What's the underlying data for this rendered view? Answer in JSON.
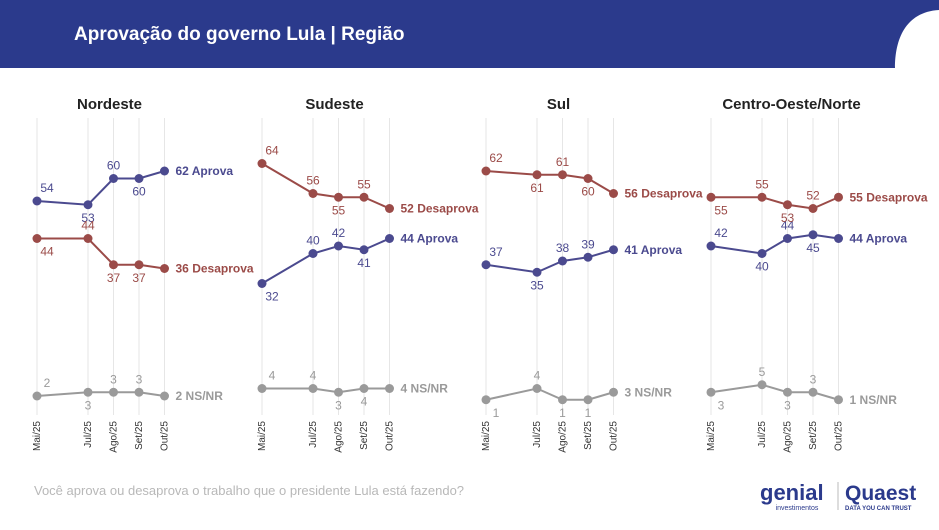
{
  "title": "Aprovação do governo Lula | Região",
  "question": "Você aprova ou desaprova o trabalho que o presidente Lula está fazendo?",
  "logos": {
    "genial": "genial",
    "genial_sub": "investimentos",
    "quaest": "Quaest",
    "quaest_sub": "DATA YOU CAN TRUST"
  },
  "chart_data": [
    {
      "type": "line",
      "title": "Nordeste",
      "x": [
        "Mai/25",
        "Jul/25",
        "Ago/25",
        "Set/25",
        "Out/25"
      ],
      "series": [
        {
          "name": "Aprova",
          "color": "#4b4a8f",
          "values": [
            54,
            53,
            60,
            60,
            62
          ]
        },
        {
          "name": "Desaprova",
          "color": "#9b4b48",
          "values": [
            44,
            44,
            37,
            37,
            36
          ]
        },
        {
          "name": "NS/NR",
          "color": "#9a9a9a",
          "values": [
            2,
            3,
            3,
            3,
            2
          ]
        }
      ]
    },
    {
      "type": "line",
      "title": "Sudeste",
      "x": [
        "Mai/25",
        "Jul/25",
        "Ago/25",
        "Set/25",
        "Out/25"
      ],
      "series": [
        {
          "name": "Aprova",
          "color": "#4b4a8f",
          "values": [
            32,
            40,
            42,
            41,
            44
          ]
        },
        {
          "name": "Desaprova",
          "color": "#9b4b48",
          "values": [
            64,
            56,
            55,
            55,
            52
          ]
        },
        {
          "name": "NS/NR",
          "color": "#9a9a9a",
          "values": [
            4,
            4,
            3,
            4,
            4
          ]
        }
      ]
    },
    {
      "type": "line",
      "title": "Sul",
      "x": [
        "Mai/25",
        "Jul/25",
        "Ago/25",
        "Set/25",
        "Out/25"
      ],
      "series": [
        {
          "name": "Aprova",
          "color": "#4b4a8f",
          "values": [
            37,
            35,
            38,
            39,
            41
          ]
        },
        {
          "name": "Desaprova",
          "color": "#9b4b48",
          "values": [
            62,
            61,
            61,
            60,
            56
          ]
        },
        {
          "name": "NS/NR",
          "color": "#9a9a9a",
          "values": [
            1,
            4,
            1,
            1,
            3
          ]
        }
      ]
    },
    {
      "type": "line",
      "title": "Centro-Oeste/Norte",
      "x": [
        "Mai/25",
        "Jul/25",
        "Ago/25",
        "Set/25",
        "Out/25"
      ],
      "series": [
        {
          "name": "Aprova",
          "color": "#4b4a8f",
          "values": [
            42,
            40,
            44,
            45,
            44
          ]
        },
        {
          "name": "Desaprova",
          "color": "#9b4b48",
          "values": [
            55,
            55,
            53,
            52,
            55
          ]
        },
        {
          "name": "NS/NR",
          "color": "#9a9a9a",
          "values": [
            3,
            5,
            3,
            3,
            1
          ]
        }
      ]
    }
  ]
}
